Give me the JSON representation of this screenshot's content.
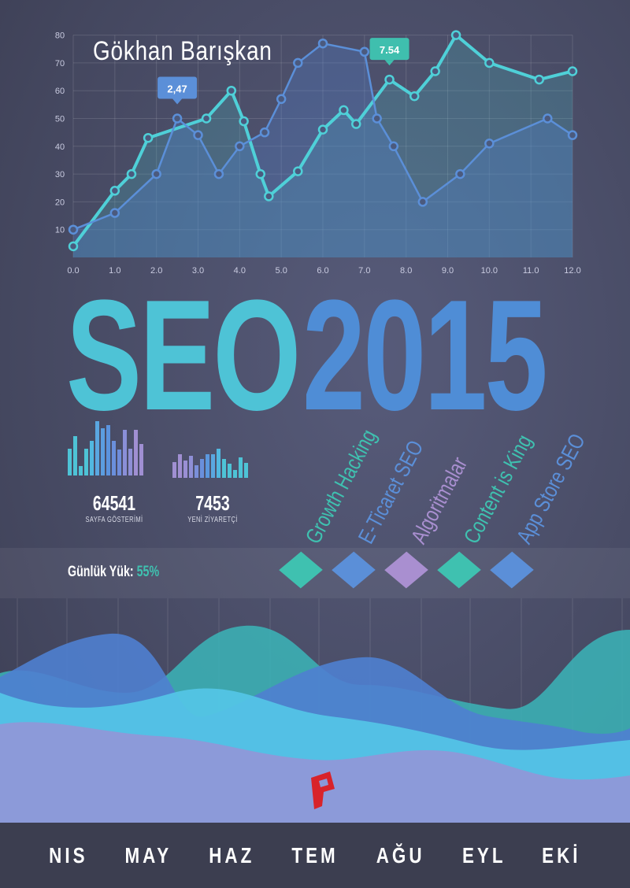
{
  "author": "Gökhan Barışkan",
  "title_part1": "SEO",
  "title_part2": "2015",
  "chart_data": {
    "type": "line",
    "xlim": [
      0,
      12
    ],
    "ylim": [
      0,
      80
    ],
    "x_ticks": [
      "0.0",
      "1.0",
      "2.0",
      "3.0",
      "4.0",
      "5.0",
      "6.0",
      "7.0",
      "8.0",
      "9.0",
      "10.0",
      "11.0",
      "12.0"
    ],
    "y_ticks": [
      "10",
      "20",
      "30",
      "40",
      "50",
      "60",
      "70",
      "80"
    ],
    "grid": true,
    "series": [
      {
        "color": "#4fd0d8",
        "points": [
          [
            0,
            4
          ],
          [
            1.0,
            24
          ],
          [
            1.4,
            30
          ],
          [
            1.8,
            43
          ],
          [
            3.2,
            50
          ],
          [
            3.8,
            60
          ],
          [
            4.1,
            49
          ],
          [
            4.5,
            30
          ],
          [
            4.7,
            22
          ],
          [
            5.4,
            31
          ],
          [
            6.0,
            46
          ],
          [
            6.5,
            53
          ],
          [
            6.8,
            48
          ],
          [
            7.6,
            64
          ],
          [
            8.2,
            58
          ],
          [
            8.7,
            67
          ],
          [
            9.2,
            80
          ],
          [
            10.0,
            70
          ],
          [
            11.2,
            64
          ],
          [
            12.0,
            67
          ]
        ]
      },
      {
        "color": "#5b8fd8",
        "points": [
          [
            0,
            10
          ],
          [
            1.0,
            16
          ],
          [
            2.0,
            30
          ],
          [
            2.5,
            50
          ],
          [
            3.0,
            44
          ],
          [
            3.5,
            30
          ],
          [
            4.0,
            40
          ],
          [
            4.6,
            45
          ],
          [
            5.0,
            57
          ],
          [
            5.4,
            70
          ],
          [
            6.0,
            77
          ],
          [
            7.0,
            74
          ],
          [
            7.3,
            50
          ],
          [
            7.7,
            40
          ],
          [
            8.4,
            20
          ],
          [
            9.3,
            30
          ],
          [
            10.0,
            41
          ],
          [
            11.4,
            50
          ],
          [
            12.0,
            44
          ]
        ]
      }
    ],
    "annotations": [
      {
        "text": "2,47",
        "x": 2.5,
        "y": 50,
        "color": "#5b8fd8"
      },
      {
        "text": "7.54",
        "x": 7.6,
        "y": 64,
        "color": "#3fbfae"
      }
    ]
  },
  "stats": [
    {
      "value": "64541",
      "label": "SAYFA GÖSTERİMİ"
    },
    {
      "value": "7453",
      "label": "YENİ ZİYARETÇİ"
    }
  ],
  "daily_load": {
    "label": "Günlük Yük:",
    "value": "55%"
  },
  "topics": [
    {
      "label": "Growth Hacking",
      "color": "#3fc1b0"
    },
    {
      "label": "E-Ticaret SEO",
      "color": "#5b8fd8"
    },
    {
      "label": "Algoritmalar",
      "color": "#a98fd0"
    },
    {
      "label": "Content is King",
      "color": "#3fc1b0"
    },
    {
      "label": "App Store SEO",
      "color": "#5b8fd8"
    }
  ],
  "months": [
    "NIS",
    "MAY",
    "HAZ",
    "TEM",
    "AĞU",
    "EYL",
    "EKİ"
  ],
  "colors": {
    "teal": "#4ec3d6",
    "blue": "#4f8dd6",
    "purple": "#a98fd0",
    "logo": "#d8232a"
  }
}
